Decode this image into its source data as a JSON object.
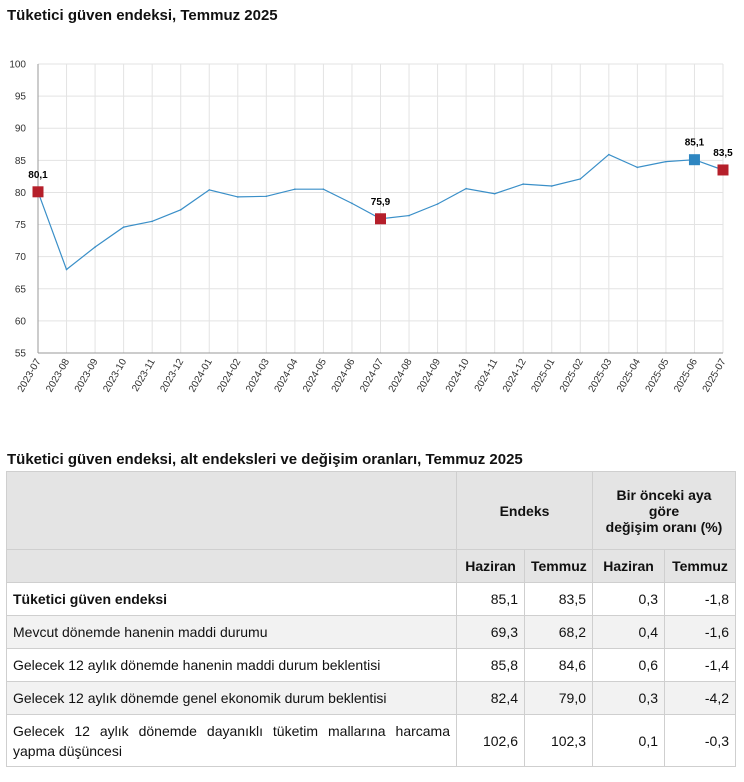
{
  "chart_data": {
    "type": "line",
    "title": "Tüketici güven endeksi, Temmuz 2025",
    "x": [
      "2023-07",
      "2023-08",
      "2023-09",
      "2023-10",
      "2023-11",
      "2023-12",
      "2024-01",
      "2024-02",
      "2024-03",
      "2024-04",
      "2024-05",
      "2024-06",
      "2024-07",
      "2024-08",
      "2024-09",
      "2024-10",
      "2024-11",
      "2024-12",
      "2025-01",
      "2025-02",
      "2025-03",
      "2025-04",
      "2025-05",
      "2025-06",
      "2025-07"
    ],
    "values": [
      80.1,
      68.0,
      71.5,
      74.6,
      75.5,
      77.3,
      80.4,
      79.3,
      79.4,
      80.5,
      80.5,
      78.3,
      75.9,
      76.4,
      78.2,
      80.6,
      79.8,
      81.3,
      81.0,
      82.1,
      85.9,
      83.9,
      84.8,
      85.1,
      83.5
    ],
    "ylim": [
      55,
      100
    ],
    "yticks": [
      55,
      60,
      65,
      70,
      75,
      80,
      85,
      90,
      95,
      100
    ],
    "grid": true,
    "series_color": "#3a8fc8",
    "highlight_color": "#b51f2a",
    "highlight_blue": "#2e86c1",
    "markers": [
      {
        "index": 0,
        "label": "80,1",
        "color": "#b51f2a"
      },
      {
        "index": 12,
        "label": "75,9",
        "color": "#b51f2a"
      },
      {
        "index": 23,
        "label": "85,1",
        "color": "#2e86c1"
      },
      {
        "index": 24,
        "label": "83,5",
        "color": "#b51f2a"
      }
    ]
  },
  "table": {
    "title": "Tüketici güven endeksi, alt endeksleri ve değişim oranları, Temmuz 2025",
    "group_endeks": "Endeks",
    "group_change_line1": "Bir önceki aya",
    "group_change_line2": "göre",
    "group_change_line3": "değişim oranı (%)",
    "col_haziran_1": "Haziran",
    "col_temmuz_1": "Temmuz",
    "col_haziran_2": "Haziran",
    "col_temmuz_2": "Temmuz",
    "rows": [
      {
        "label": "Tüketici güven endeksi",
        "haziran": "85,1",
        "temmuz": "83,5",
        "ch_haziran": "0,3",
        "ch_temmuz": "-1,8"
      },
      {
        "label": "Mevcut dönemde hanenin maddi durumu",
        "haziran": "69,3",
        "temmuz": "68,2",
        "ch_haziran": "0,4",
        "ch_temmuz": "-1,6"
      },
      {
        "label": "Gelecek 12 aylık dönemde hanenin maddi durum beklentisi",
        "haziran": "85,8",
        "temmuz": "84,6",
        "ch_haziran": "0,6",
        "ch_temmuz": "-1,4"
      },
      {
        "label": "Gelecek 12 aylık dönemde genel ekonomik durum beklentisi",
        "haziran": "82,4",
        "temmuz": "79,0",
        "ch_haziran": "0,3",
        "ch_temmuz": "-4,2"
      },
      {
        "label": "Gelecek 12 aylık dönemde dayanıklı tüketim mallarına harcama yapma düşüncesi",
        "haziran": "102,6",
        "temmuz": "102,3",
        "ch_haziran": "0,1",
        "ch_temmuz": "-0,3"
      }
    ]
  }
}
